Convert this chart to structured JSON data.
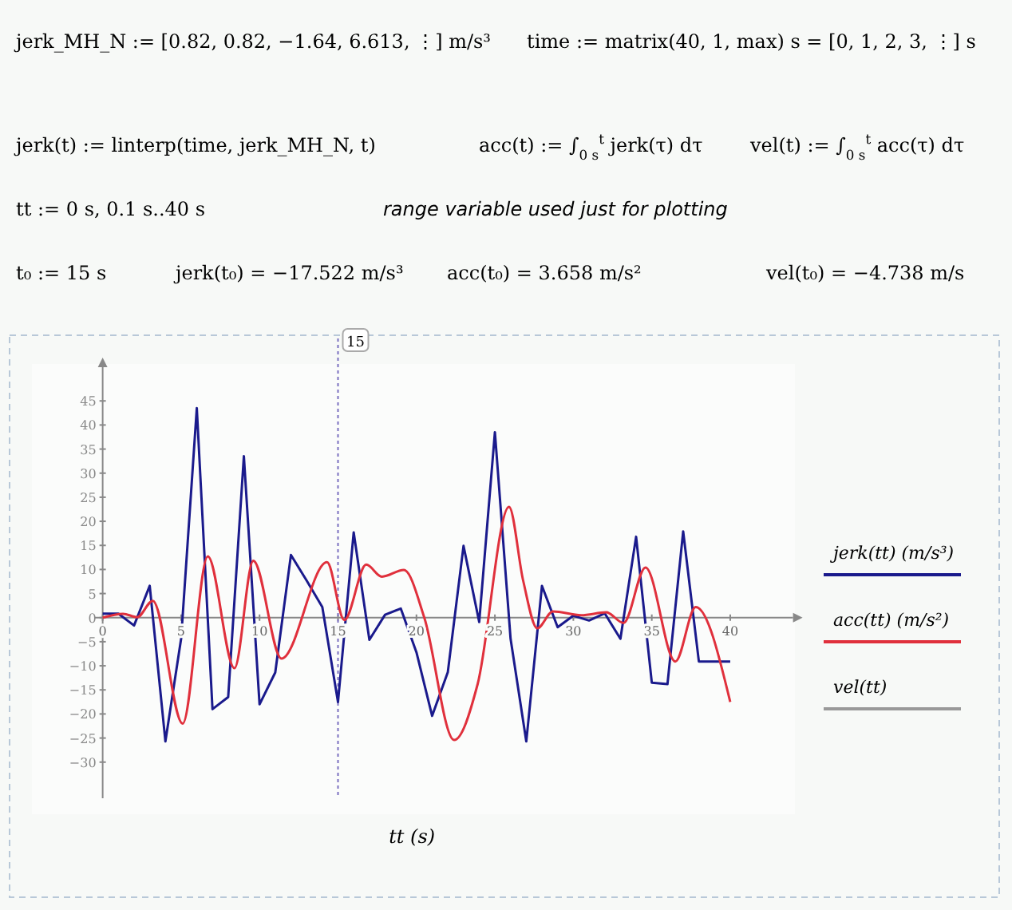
{
  "chart_data": {
    "type": "line",
    "xlabel": "tt (s)",
    "xlim": [
      -0.5,
      44
    ],
    "ylim": [
      -37.5,
      52
    ],
    "xticks": [
      0,
      5,
      10,
      15,
      20,
      25,
      30,
      35,
      40
    ],
    "yticks": [
      -30,
      -25,
      -20,
      -15,
      -10,
      -5,
      0,
      5,
      10,
      15,
      20,
      25,
      30,
      35,
      40,
      45
    ],
    "grid": false,
    "legend": "right",
    "marker": "none",
    "line_style": "solid",
    "series": [
      {
        "name": "jerk(tt) (m/s³)",
        "color": "#1a1a8c",
        "x": [
          0,
          1,
          2,
          3,
          4,
          5,
          6,
          7,
          8,
          9,
          10,
          11,
          12,
          13,
          14,
          15,
          16,
          17,
          18,
          19,
          20,
          21,
          22,
          23,
          24,
          25,
          26,
          27,
          28,
          29,
          30,
          31,
          32,
          33,
          34,
          35,
          36,
          37,
          38,
          39,
          40
        ],
        "values": [
          0.82,
          0.82,
          -1.64,
          6.613,
          -25.7,
          -4.4,
          43.5,
          -19,
          -16.5,
          33.5,
          -18,
          -11.4,
          13,
          7.7,
          2.2,
          -17.522,
          17.7,
          -4.6,
          0.6,
          1.9,
          -7.2,
          -20.4,
          -11.3,
          14.9,
          -0.9,
          38.5,
          -4.4,
          -25.7,
          6.6,
          -2,
          0.4,
          -0.6,
          0.9,
          -4.4,
          16.8,
          -13.5,
          -13.8,
          17.9,
          -9.1,
          -9.1,
          -9.1
        ]
      },
      {
        "name": "acc(tt) (m/s²)",
        "color": "#e0303c",
        "x": [
          0,
          1.3,
          2.2,
          3.2,
          5.1,
          6.7,
          8.4,
          9.6,
          11.4,
          14.3,
          15.4,
          16.8,
          17.8,
          19.2,
          20.5,
          22.4,
          23.9,
          25.9,
          26.8,
          27.7,
          28.7,
          30.5,
          32.1,
          33.2,
          34.6,
          36.5,
          37.8,
          40
        ],
        "values": [
          0,
          0.8,
          0.1,
          3.5,
          -22,
          12.7,
          -10.5,
          11.8,
          -8.5,
          11.5,
          -0.5,
          11,
          8.5,
          9.9,
          0,
          -25.4,
          -13.8,
          23,
          7.7,
          -2.2,
          1.3,
          0.5,
          1.1,
          -1.1,
          10.4,
          -9.1,
          2.2,
          -17.5
        ]
      }
    ],
    "ref_lines": [
      {
        "axis": "x",
        "value": 15,
        "label": "15",
        "color": "#7a6fc0",
        "line_style": "dotted"
      }
    ],
    "annotations": [
      "jerk_MH_N := [0.82, 0.82, −1.64, 6.613, ⋮] m/s³",
      "time := matrix(40, 1, max) s = [0, 1, 2, 3, ⋮] s",
      "jerk(t) := linterp(time, jerk_MH_N, t)",
      "acc(t) := ∫$_{0 s}$$^{t}$ jerk(τ) dτ",
      "vel(t) := ∫$_{0 s}$$^{t}$ acc(τ) dτ",
      "tt := 0 s, 0.1 s..40 s",
      "range variable used just for plotting",
      "t₀ := 15 s",
      "jerk(t₀) = −17.522 m/s³",
      "acc(t₀) = 3.658 m/s²",
      "vel(t₀) = −4.738 m/s",
      "vel(tt)"
    ]
  }
}
